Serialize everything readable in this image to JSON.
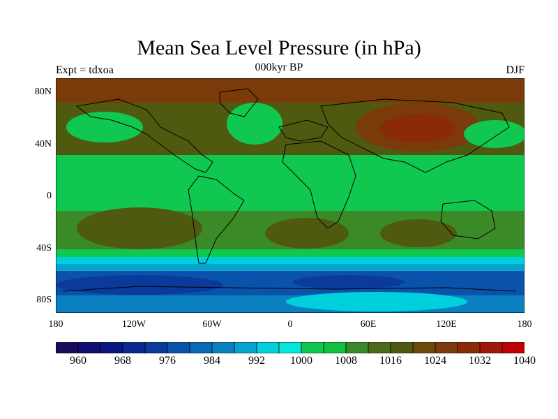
{
  "title": "Mean Sea Level Pressure (in hPa)",
  "labels": {
    "left": "Expt = tdxoa",
    "center": "000kyr BP",
    "right": "DJF"
  },
  "lat_ticks": [
    "80N",
    "40N",
    "0",
    "40S",
    "80S"
  ],
  "lat_values": [
    80,
    40,
    0,
    -40,
    -80
  ],
  "lon_ticks": [
    "180",
    "120W",
    "60W",
    "0",
    "60E",
    "120E",
    "180"
  ],
  "lon_values": [
    -180,
    -120,
    -60,
    0,
    60,
    120,
    180
  ],
  "colorbar": {
    "labels": [
      "960",
      "968",
      "976",
      "984",
      "992",
      "1000",
      "1008",
      "1016",
      "1024",
      "1032",
      "1040"
    ],
    "colors": [
      "#1a0a5a",
      "#0e0e6e",
      "#0a1680",
      "#0a2a8e",
      "#0a3a9a",
      "#0a52aa",
      "#0a68b4",
      "#0a80c0",
      "#06a4cc",
      "#00d0dc",
      "#00e8dc",
      "#10c850",
      "#10c040",
      "#3a8a28",
      "#4a6a18",
      "#4f5a10",
      "#6a4a0a",
      "#7a3a0a",
      "#8a2a08",
      "#a01808",
      "#c00000"
    ]
  },
  "legend_colors": {
    "low": "#0a3a9a",
    "midlow": "#00d0dc",
    "mid": "#10c850",
    "midhigh": "#4f5a10",
    "high": "#8a2a08"
  }
}
